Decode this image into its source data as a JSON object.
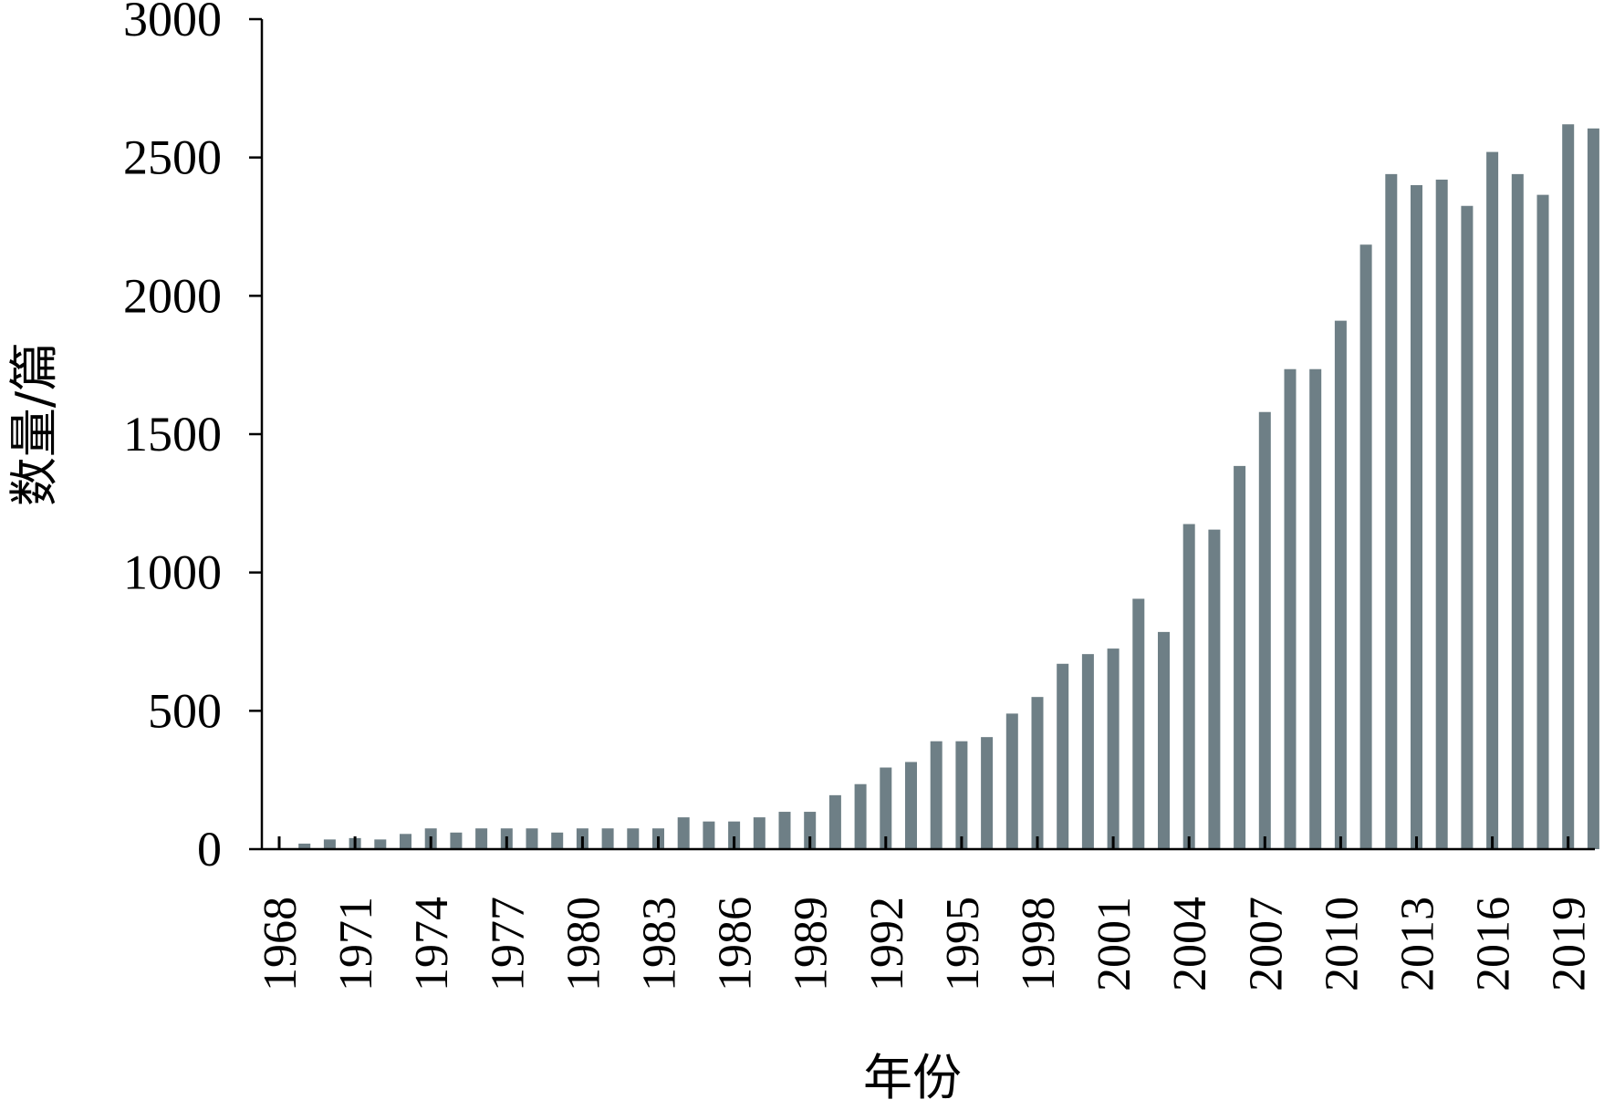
{
  "chart_data": {
    "type": "bar",
    "title": "",
    "xlabel": "年份",
    "ylabel": "数量/篇",
    "ylim": [
      0,
      3000
    ],
    "yticks": [
      0,
      500,
      1000,
      1500,
      2000,
      2500,
      3000
    ],
    "grid": false,
    "legend": "none",
    "bar_color": "#6E7F86",
    "categories": [
      1968,
      1969,
      1970,
      1971,
      1972,
      1973,
      1974,
      1975,
      1976,
      1977,
      1978,
      1979,
      1980,
      1981,
      1982,
      1983,
      1984,
      1985,
      1986,
      1987,
      1988,
      1989,
      1990,
      1991,
      1992,
      1993,
      1994,
      1995,
      1996,
      1997,
      1998,
      1999,
      2000,
      2001,
      2002,
      2003,
      2004,
      2005,
      2006,
      2007,
      2008,
      2009,
      2010,
      2011,
      2012,
      2013,
      2014,
      2015,
      2016,
      2017,
      2018,
      2019,
      2020
    ],
    "values": [
      0,
      20,
      35,
      40,
      35,
      55,
      75,
      60,
      75,
      75,
      75,
      60,
      75,
      75,
      75,
      75,
      115,
      100,
      100,
      115,
      135,
      135,
      195,
      235,
      295,
      315,
      390,
      390,
      405,
      490,
      550,
      670,
      705,
      725,
      905,
      785,
      1175,
      1155,
      1385,
      1580,
      1735,
      1735,
      1910,
      2185,
      2440,
      2400,
      2420,
      2325,
      2520,
      2440,
      2365,
      2620,
      2605
    ],
    "xtick_labels": [
      "1968",
      "1971",
      "1974",
      "1977",
      "1980",
      "1983",
      "1986",
      "1989",
      "1992",
      "1995",
      "1998",
      "2001",
      "2004",
      "2007",
      "2010",
      "2013",
      "2016",
      "2019"
    ]
  }
}
